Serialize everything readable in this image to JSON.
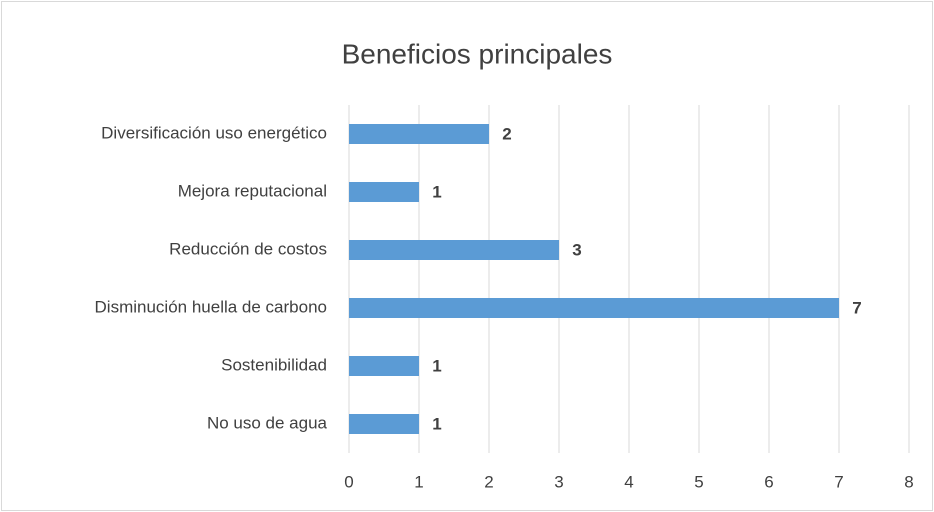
{
  "chart_data": {
    "type": "bar",
    "orientation": "horizontal",
    "title": "Beneficios principales",
    "categories": [
      "Diversificación uso energético",
      "Mejora reputacional",
      "Reducción de costos",
      "Disminución huella de carbono",
      "Sostenibilidad",
      "No uso de agua"
    ],
    "values": [
      2,
      1,
      3,
      7,
      1,
      1
    ],
    "color": "#5b9bd5",
    "xlim": [
      0,
      8
    ],
    "xticks": [
      0,
      1,
      2,
      3,
      4,
      5,
      6,
      7,
      8
    ],
    "grid": true
  }
}
